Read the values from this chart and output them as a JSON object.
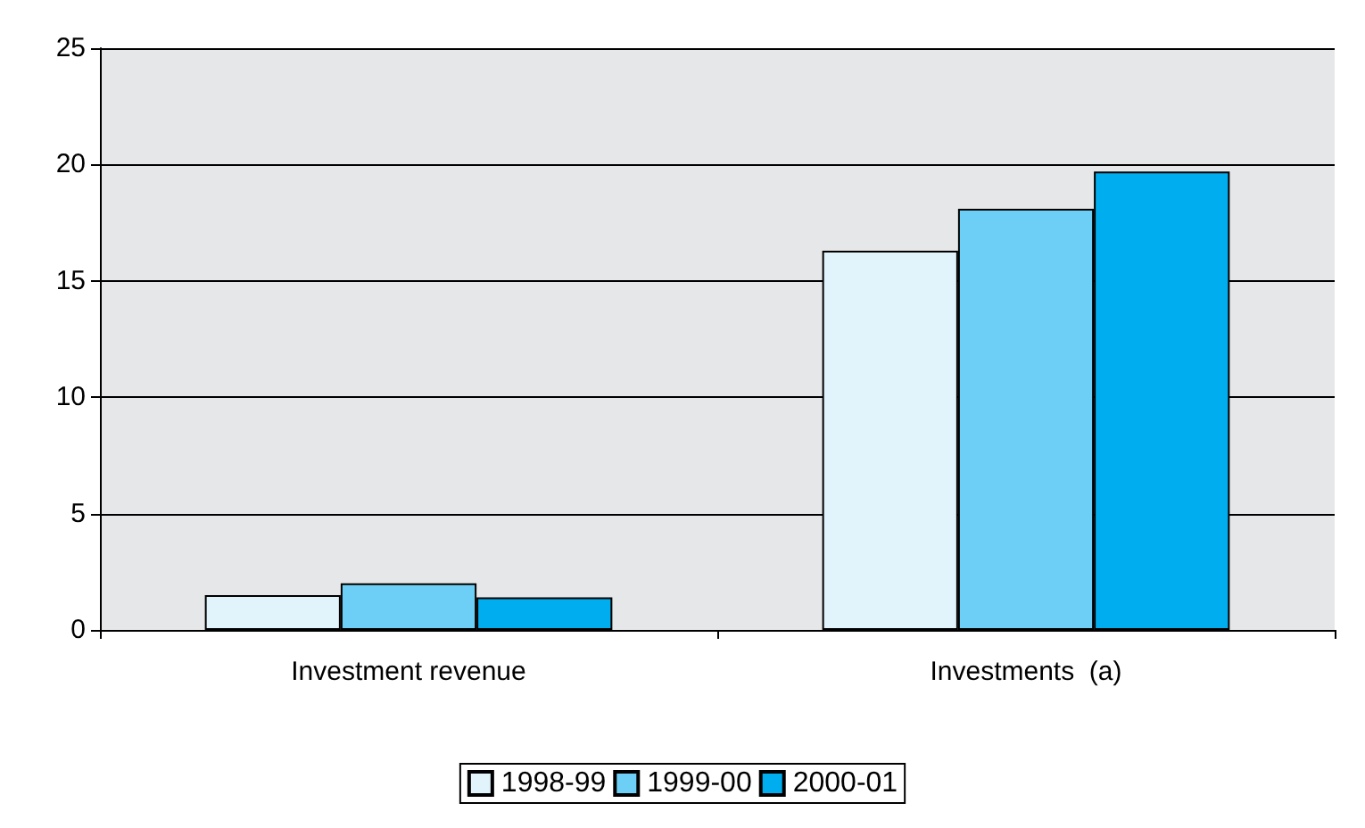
{
  "chart_data": {
    "type": "bar",
    "categories": [
      "Investment revenue",
      "Investments  (a)"
    ],
    "series": [
      {
        "name": "1998-99",
        "color": "#e1f4fb",
        "values": [
          1.5,
          16.3
        ]
      },
      {
        "name": "1999-00",
        "color": "#6dcff6",
        "values": [
          2.0,
          18.1
        ]
      },
      {
        "name": "2000-01",
        "color": "#00aeef",
        "values": [
          1.4,
          19.7
        ]
      }
    ],
    "ylim": [
      0,
      25
    ],
    "yticks": [
      0,
      5,
      10,
      15,
      20,
      25
    ],
    "grid": "y",
    "legend": "bottom"
  }
}
